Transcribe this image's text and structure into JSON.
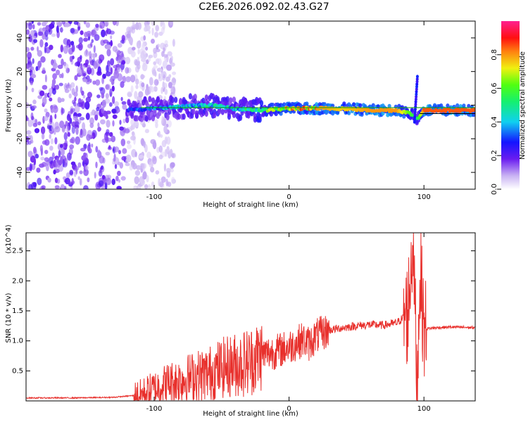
{
  "title": "C2E6.2026.092.02.43.G27",
  "chart_data": [
    {
      "type": "heatmap",
      "title": "C2E6.2026.092.02.43.G27",
      "xlabel": "Height of straight line (km)",
      "ylabel": "Frequency (Hz)",
      "xlim": [
        -195,
        138
      ],
      "ylim": [
        -50,
        50
      ],
      "xticks": [
        -100,
        0,
        100
      ],
      "xtick_labels": [
        "-100",
        "0",
        "100"
      ],
      "yticks": [
        -40,
        -20,
        0,
        20,
        40
      ],
      "ytick_labels": [
        "-40",
        "-20",
        "0",
        "20",
        "40"
      ],
      "colorbar": {
        "label": "Normalized spectral amplitude",
        "range": [
          0,
          1
        ],
        "ticks": [
          0.0,
          0.2,
          0.4,
          0.6,
          0.8
        ],
        "tick_labels": [
          "0.0",
          "0.2",
          "0.4",
          "0.6",
          "0.8"
        ]
      },
      "ridge": {
        "x": [
          -120,
          -100,
          -80,
          -60,
          -40,
          -20,
          0,
          20,
          40,
          60,
          80,
          90,
          95,
          100,
          120,
          138
        ],
        "frequency": [
          -3,
          -2,
          -1,
          0,
          -2,
          -3,
          -2,
          -2,
          -2,
          -3,
          -3,
          -5,
          -8,
          -3,
          -3,
          -3
        ],
        "amplitude": [
          0.3,
          0.35,
          0.4,
          0.45,
          0.4,
          0.55,
          0.75,
          0.8,
          0.75,
          0.8,
          0.8,
          0.6,
          0.5,
          0.85,
          0.85,
          0.85
        ]
      },
      "noise_region_x": [
        -195,
        -120
      ]
    },
    {
      "type": "line",
      "xlabel": "Height of straight line (km)",
      "ylabel": "SNR (10 * v/v)",
      "scale_label": "(x10^4)",
      "xlim": [
        -195,
        138
      ],
      "ylim": [
        0,
        2.8
      ],
      "xticks": [
        -100,
        0,
        100
      ],
      "xtick_labels": [
        "-100",
        "0",
        "100"
      ],
      "yticks": [
        0.5,
        1.0,
        1.5,
        2.0,
        2.5
      ],
      "ytick_labels": [
        "0.5",
        "1.0",
        "1.5",
        "2.0",
        "2.5"
      ],
      "series": [
        {
          "name": "SNR",
          "color": "#e8302c",
          "x": [
            -195,
            -160,
            -130,
            -110,
            -100,
            -90,
            -80,
            -70,
            -60,
            -50,
            -40,
            -30,
            -20,
            -10,
            0,
            10,
            15,
            20,
            30,
            40,
            50,
            60,
            70,
            80,
            88,
            92,
            95,
            97,
            100,
            110,
            120,
            138
          ],
          "y": [
            0.05,
            0.05,
            0.06,
            0.1,
            0.2,
            0.3,
            0.35,
            0.42,
            0.45,
            0.55,
            0.6,
            0.65,
            0.78,
            0.82,
            0.9,
            1.02,
            0.95,
            1.08,
            1.18,
            1.22,
            1.25,
            1.27,
            1.26,
            1.3,
            1.45,
            2.8,
            0.05,
            2.25,
            1.2,
            1.22,
            1.23,
            1.22
          ]
        }
      ]
    }
  ]
}
